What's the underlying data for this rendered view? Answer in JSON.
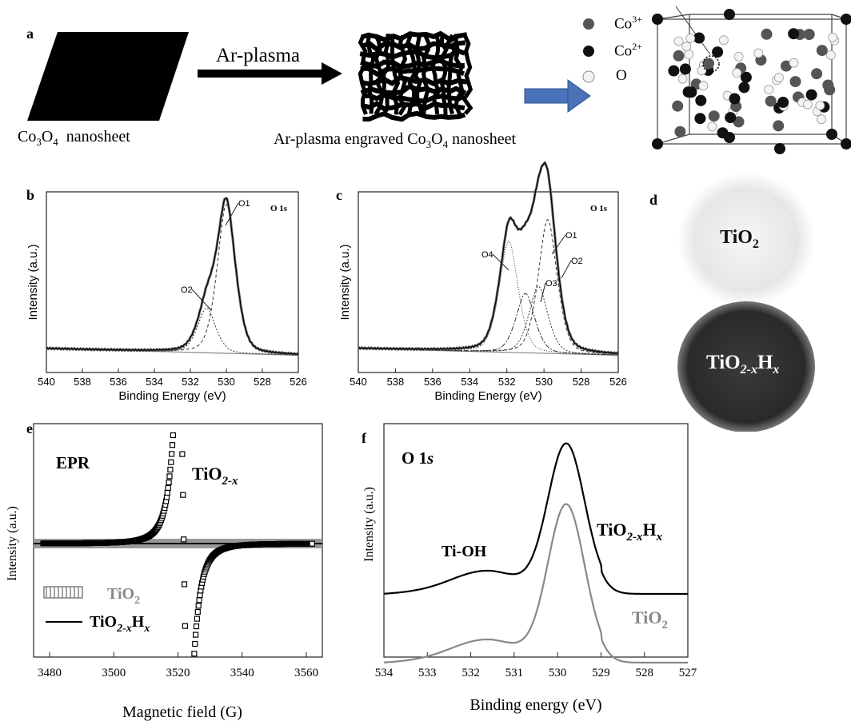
{
  "panel_a": {
    "label": "a",
    "nanosheet_label": "Co",
    "nanosheet_sub1": "3",
    "nanosheet_mid": "O",
    "nanosheet_sub2": "4",
    "nanosheet_tail": "nanosheet",
    "arrow_label": "Ar-plasma",
    "engraved_pre": "Ar-plasma engraved Co",
    "engraved_sub1": "3",
    "engraved_mid": "O",
    "engraved_sub2": "4",
    "engraved_tail": " nanosheet",
    "legend": [
      {
        "base": "Co",
        "sup": "3+",
        "color": "#555555"
      },
      {
        "base": "Co",
        "sup": "2+",
        "color": "#111111"
      },
      {
        "base": "O",
        "sup": "",
        "color": "#f4f4f4"
      }
    ]
  },
  "panel_d": {
    "label": "d",
    "top_base": "TiO",
    "top_sub": "2",
    "bottom_base": "TiO",
    "bottom_sub": "2-x",
    "bottom_h": "H",
    "bottom_x": "x"
  },
  "chart_data": [
    {
      "id": "b",
      "type": "line",
      "label": "b",
      "title": "O 1s",
      "xlabel": "Binding Energy (eV)",
      "ylabel": "Intensity (a.u.)",
      "xlim": [
        540,
        526
      ],
      "xticks": [
        540,
        538,
        536,
        534,
        532,
        530,
        528,
        526
      ],
      "peaks": [
        {
          "name": "O1",
          "center": 530.0,
          "height": 1.0
        },
        {
          "name": "O2",
          "center": 531.1,
          "height": 0.3
        }
      ]
    },
    {
      "id": "c",
      "type": "line",
      "label": "c",
      "title": "O 1s",
      "xlabel": "Binding Energy (eV)",
      "ylabel": "Intensity (a.u.)",
      "xlim": [
        540,
        526
      ],
      "xticks": [
        540,
        538,
        536,
        534,
        532,
        530,
        528,
        526
      ],
      "peaks": [
        {
          "name": "O1",
          "center": 529.8,
          "height": 0.9
        },
        {
          "name": "O2",
          "center": 530.3,
          "height": 0.45
        },
        {
          "name": "O3",
          "center": 531.0,
          "height": 0.4
        },
        {
          "name": "O4",
          "center": 531.9,
          "height": 0.75
        }
      ]
    },
    {
      "id": "e",
      "type": "line",
      "label": "e",
      "title": "EPR",
      "xlabel": "Magnetic field (G)",
      "ylabel": "Intensity (a.u.)",
      "xlim": [
        3475,
        3565
      ],
      "xticks": [
        3480,
        3500,
        3520,
        3540,
        3560
      ],
      "series": [
        {
          "name": "TiO2",
          "base": "TiO",
          "sub": "2",
          "color": "#888888"
        },
        {
          "name": "TiO2-xHx",
          "base": "TiO",
          "sub": "2-x",
          "h": "H",
          "x": "x",
          "color": "#000000"
        }
      ],
      "annotation": {
        "base": "TiO",
        "sub": "2-x"
      }
    },
    {
      "id": "f",
      "type": "line",
      "label": "f",
      "title": "O 1",
      "title_italic": "s",
      "xlabel": "Binding energy (eV)",
      "ylabel": "Intensity (a.u.)",
      "xlim": [
        534,
        527
      ],
      "xticks": [
        534,
        533,
        532,
        531,
        530,
        529,
        528,
        527
      ],
      "peak_center": 529.8,
      "shoulder_label": "Ti-OH",
      "series": [
        {
          "name": "TiO2-xHx",
          "base": "TiO",
          "sub": "2-x",
          "h": "H",
          "x": "x",
          "color": "#000000"
        },
        {
          "name": "TiO2",
          "base": "TiO",
          "sub": "2",
          "color": "#888888"
        }
      ]
    }
  ]
}
